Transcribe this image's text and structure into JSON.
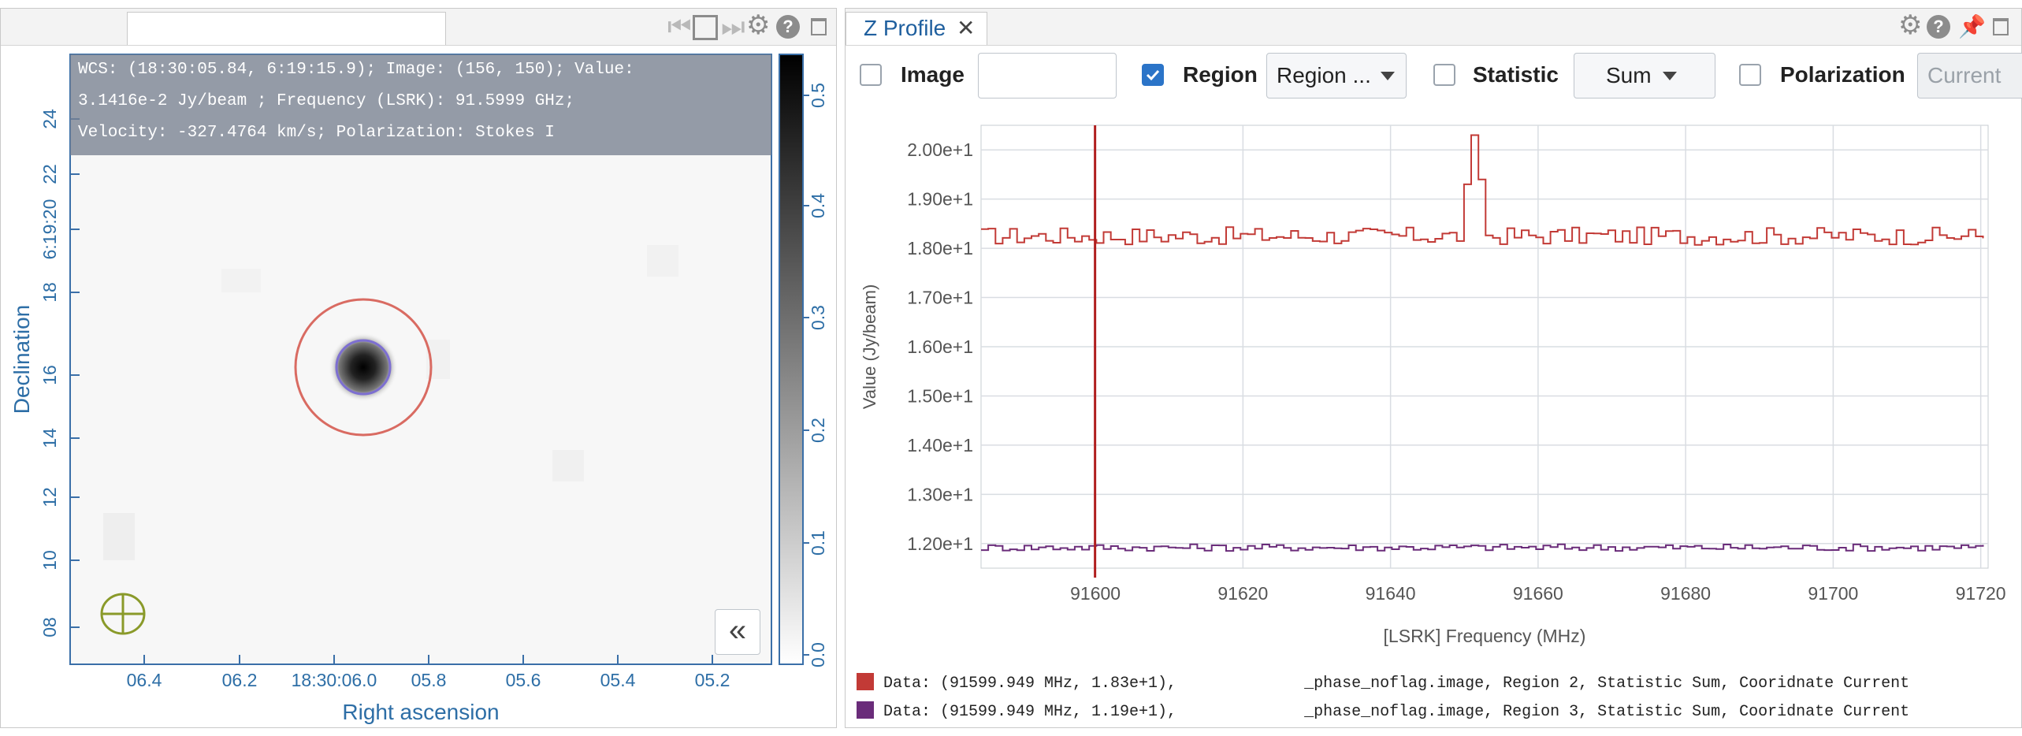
{
  "left_panel": {
    "tab_title": "",
    "cursor_info": {
      "line1": "WCS: (18:30:05.84, 6:19:15.9); Image: (156, 150); Value:",
      "line2": "3.1416e-2 Jy/beam ; Frequency (LSRK): 91.5999 GHz;",
      "line3": "Velocity: -327.4764 km/s; Polarization: Stokes I"
    },
    "axes": {
      "y_label": "Declination",
      "x_label": "Right ascension",
      "y_ticks": [
        "24",
        "22",
        "6:19:20",
        "18",
        "16",
        "14",
        "12",
        "10",
        "08"
      ],
      "x_ticks": [
        "06.4",
        "06.2",
        "18:30:06.0",
        "05.8",
        "05.6",
        "05.4",
        "05.2"
      ]
    },
    "colorbar_ticks": [
      "0.5",
      "0.4",
      "0.3",
      "0.2",
      "0.1",
      "0.0"
    ],
    "collapse_button": "«",
    "icons": [
      "first-frame-icon",
      "stop-icon",
      "next-frame-icon",
      "gear-icon",
      "help-icon",
      "maximize-icon"
    ]
  },
  "right_panel": {
    "tab_title": "Z Profile",
    "close_glyph": "✕",
    "controls": {
      "image_label": "Image",
      "image_value": "",
      "region_label": "Region",
      "region_value": "Region ...",
      "statistic_label": "Statistic",
      "statistic_value": "Sum",
      "polarization_label": "Polarization",
      "polarization_value": "Current"
    },
    "icons": [
      "gear-icon",
      "help-icon",
      "pin-icon",
      "maximize-icon"
    ],
    "legend": [
      {
        "color": "#c23a36",
        "prefix": "Data: (91599.949 MHz, 1.83e+1),",
        "suffix": "_phase_noflag.image, Region 2, Statistic Sum, Cooridnate Current"
      },
      {
        "color": "#6a2c7a",
        "prefix": "Data: (91599.949 MHz, 1.19e+1),",
        "suffix": "_phase_noflag.image, Region 3, Statistic Sum, Cooridnate Current"
      }
    ]
  },
  "chart_data": {
    "type": "line",
    "title": "",
    "xlabel": "[LSRK] Frequency (MHz)",
    "ylabel": "Value (Jy/beam)",
    "xlim": [
      91584.5,
      91721
    ],
    "ylim": [
      11.5,
      20.5
    ],
    "x_ticks": [
      91600,
      91620,
      91640,
      91660,
      91680,
      91700,
      91720
    ],
    "y_ticks": [
      "1.20e+1",
      "1.30e+1",
      "1.40e+1",
      "1.50e+1",
      "1.60e+1",
      "1.70e+1",
      "1.80e+1",
      "1.90e+1",
      "2.00e+1"
    ],
    "y_tick_values": [
      12,
      13,
      14,
      15,
      16,
      17,
      18,
      19,
      20
    ],
    "cursor_x": 91599.949,
    "grid": true,
    "series": [
      {
        "color": "#c23a36",
        "x_start": 91584.5,
        "x_step": 0.977,
        "baseline": 18.25,
        "noise": 0.18,
        "spike": {
          "x": 91650.8,
          "values": [
            19.3,
            20.3,
            19.4,
            18.5
          ]
        }
      },
      {
        "color": "#6a2c7a",
        "x_start": 91584.5,
        "x_step": 0.977,
        "baseline": 11.92,
        "noise": 0.07
      }
    ]
  }
}
